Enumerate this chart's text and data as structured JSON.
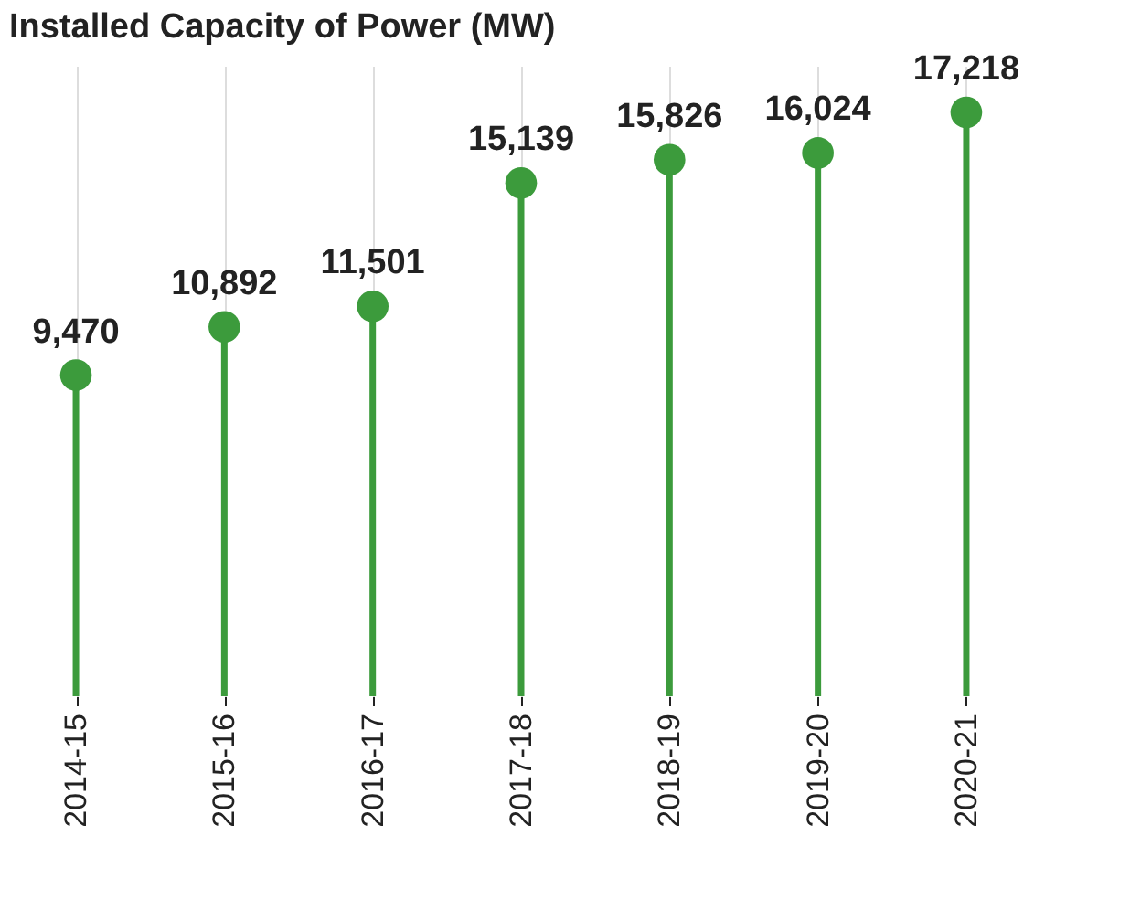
{
  "chart_data": {
    "type": "lollipop",
    "title": "Installed Capacity of Power (MW)",
    "categories": [
      "2014-15",
      "2015-16",
      "2016-17",
      "2017-18",
      "2018-19",
      "2019-20",
      "2020-21"
    ],
    "values": [
      9470,
      10892,
      11501,
      15139,
      15826,
      16024,
      17218
    ],
    "value_labels": [
      "9,470",
      "10,892",
      "11,501",
      "15,139",
      "15,826",
      "16,024",
      "17,218"
    ],
    "color": "#3c9b3c",
    "grid": "x",
    "marker": "circle"
  }
}
